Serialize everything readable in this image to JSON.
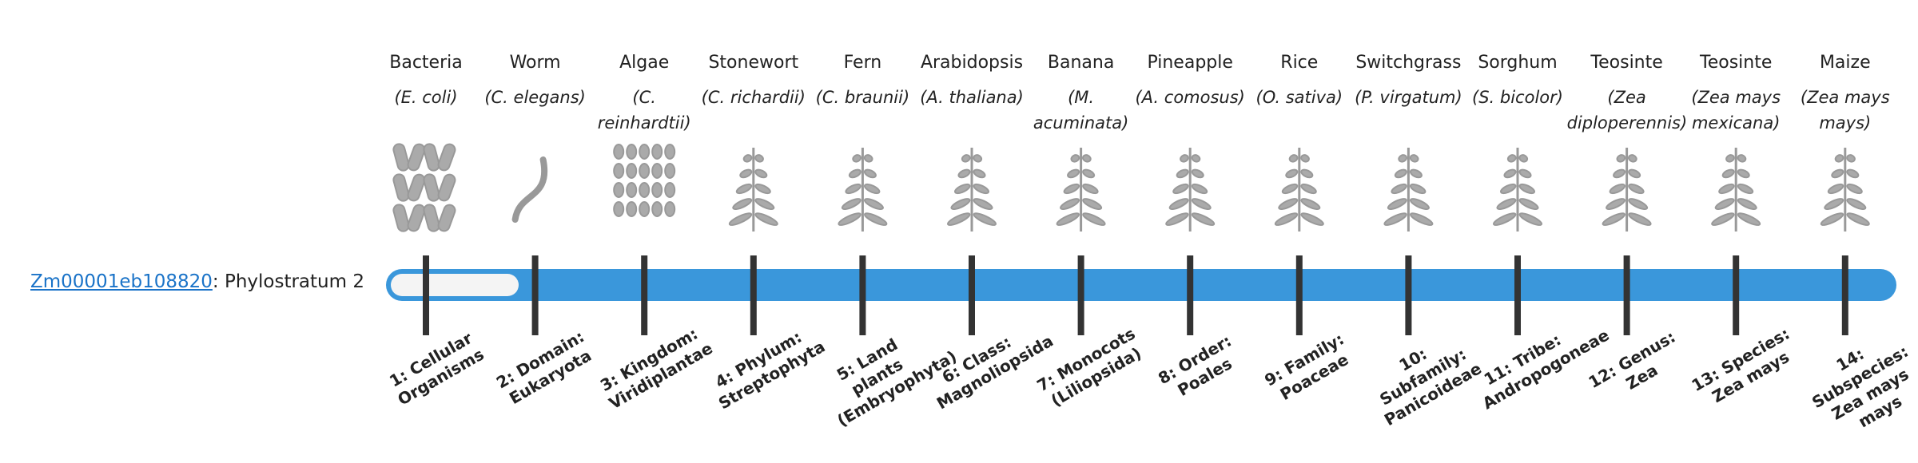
{
  "gene": {
    "id": "Zm00001eb108820",
    "phylostratum": ": Phylostratum 2"
  },
  "strata": [
    {
      "common": "Bacteria",
      "scientific": "(E. coli)",
      "rank": "1: Cellular Organisms"
    },
    {
      "common": "Worm",
      "scientific": "(C. elegans)",
      "rank": "2: Domain: Eukaryota"
    },
    {
      "common": "Algae",
      "scientific": "(C. reinhardtii)",
      "rank": "3: Kingdom: Viridiplantae"
    },
    {
      "common": "Stonewort",
      "scientific": "(C. richardii)",
      "rank": "4: Phylum: Streptophyta"
    },
    {
      "common": "Fern",
      "scientific": "(C. braunii)",
      "rank": "5: Land plants (Embryophyta)"
    },
    {
      "common": "Arabidopsis",
      "scientific": "(A. thaliana)",
      "rank": "6: Class: Magnoliopsida"
    },
    {
      "common": "Banana",
      "scientific": "(M. acuminata)",
      "rank": "7: Monocots (Liliopsida)"
    },
    {
      "common": "Pineapple",
      "scientific": "(A. comosus)",
      "rank": "8: Order: Poales"
    },
    {
      "common": "Rice",
      "scientific": "(O. sativa)",
      "rank": "9: Family: Poaceae"
    },
    {
      "common": "Switchgrass",
      "scientific": "(P. virgatum)",
      "rank": "10: Subfamily: Panicoideae"
    },
    {
      "common": "Sorghum",
      "scientific": "(S. bicolor)",
      "rank": "11: Tribe: Andropogoneae"
    },
    {
      "common": "Teosinte",
      "scientific": "(Zea diploperennis)",
      "rank": "12: Genus: Zea"
    },
    {
      "common": "Teosinte",
      "scientific": "(Zea mays mexicana)",
      "rank": "13: Species: Zea mays"
    },
    {
      "common": "Maize",
      "scientific": "(Zea mays mays)",
      "rank": "14: Subspecies: Zea mays mays"
    }
  ]
}
